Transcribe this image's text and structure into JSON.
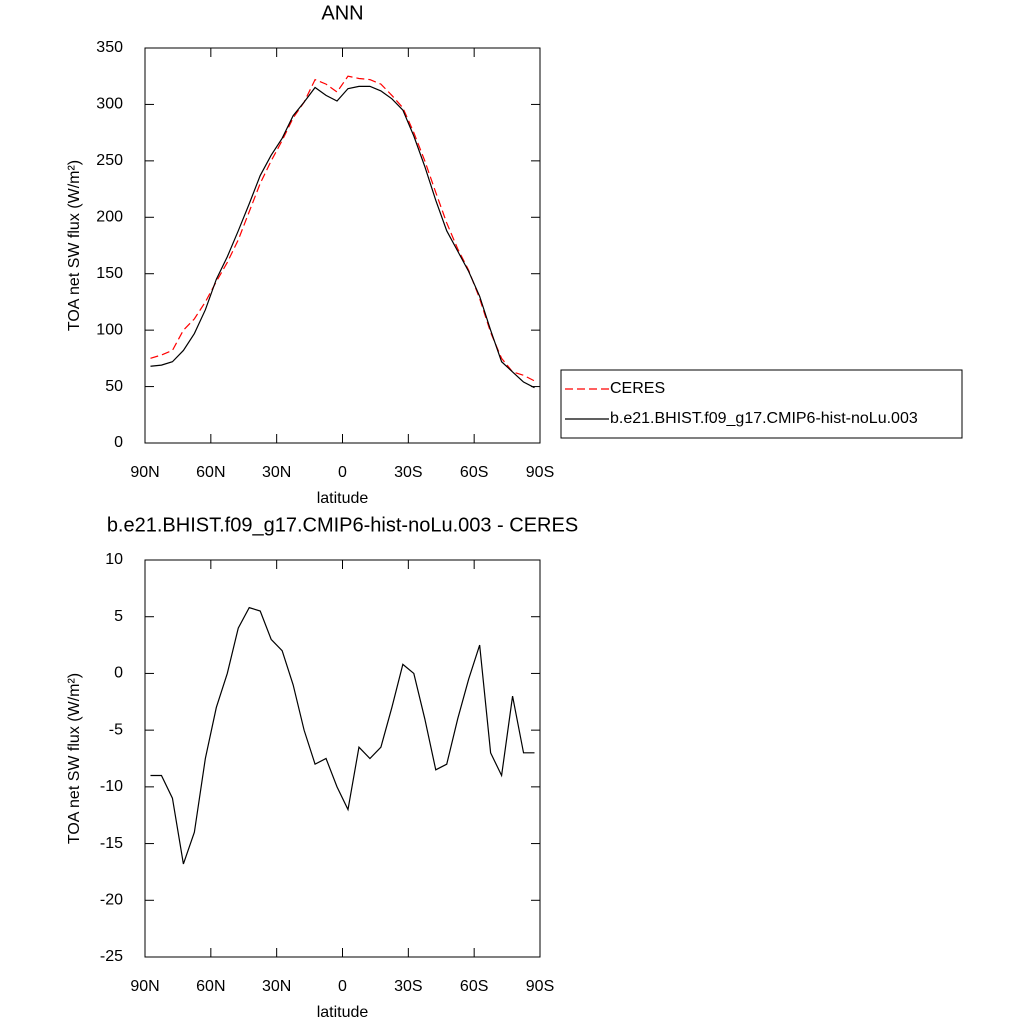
{
  "chart_data": [
    {
      "type": "line",
      "title": "ANN",
      "x_label": "latitude",
      "y_label": "TOA net SW flux (W/m²)",
      "x": [
        87.5,
        82.5,
        77.5,
        72.5,
        67.5,
        62.5,
        57.5,
        52.5,
        47.5,
        42.5,
        37.5,
        32.5,
        27.5,
        22.5,
        17.5,
        12.5,
        7.5,
        2.5,
        -2.5,
        -7.5,
        -12.5,
        -17.5,
        -22.5,
        -27.5,
        -32.5,
        -37.5,
        -42.5,
        -47.5,
        -52.5,
        -57.5,
        -62.5,
        -67.5,
        -72.5,
        -77.5,
        -82.5,
        -87.5
      ],
      "series": [
        {
          "name": "CERES",
          "color": "#ff0000",
          "dash": true,
          "values": [
            75,
            78,
            82,
            100,
            110,
            125,
            143,
            160,
            180,
            205,
            230,
            250,
            268,
            288,
            302,
            322,
            318,
            311,
            325,
            323,
            322,
            318,
            308,
            297,
            275,
            250,
            222,
            195,
            172,
            153,
            128,
            98,
            75,
            63,
            60,
            55
          ]
        },
        {
          "name": "b.e21.BHIST.f09_g17.CMIP6-hist-noLu.003",
          "color": "#000000",
          "dash": false,
          "values": [
            68,
            69,
            72,
            82,
            97,
            118,
            145,
            165,
            188,
            212,
            237,
            255,
            270,
            290,
            302,
            315,
            308,
            303,
            314,
            316,
            316,
            312,
            305,
            295,
            272,
            245,
            215,
            188,
            170,
            152,
            130,
            100,
            72,
            63,
            54,
            49
          ]
        }
      ],
      "xlim": [
        90,
        -90
      ],
      "xticks": [
        {
          "value": 90,
          "label": "90N"
        },
        {
          "value": 60,
          "label": "60N"
        },
        {
          "value": 30,
          "label": "30N"
        },
        0,
        {
          "value": -30,
          "label": "30S"
        },
        {
          "value": -60,
          "label": "60S"
        },
        {
          "value": -90,
          "label": "90S"
        }
      ],
      "ylim": [
        0,
        350
      ],
      "yticks": [
        0,
        50,
        100,
        150,
        200,
        250,
        300,
        350
      ],
      "legend": "right"
    },
    {
      "type": "line",
      "title": "b.e21.BHIST.f09_g17.CMIP6-hist-noLu.003 - CERES",
      "x_label": "latitude",
      "y_label": "TOA net SW flux (W/m²)",
      "x": [
        87.5,
        82.5,
        77.5,
        72.5,
        67.5,
        62.5,
        57.5,
        52.5,
        47.5,
        42.5,
        37.5,
        32.5,
        27.5,
        22.5,
        17.5,
        12.5,
        7.5,
        2.5,
        -2.5,
        -7.5,
        -12.5,
        -17.5,
        -22.5,
        -27.5,
        -32.5,
        -37.5,
        -42.5,
        -47.5,
        -52.5,
        -57.5,
        -62.5,
        -67.5,
        -72.5,
        -77.5,
        -82.5,
        -87.5
      ],
      "values": [
        -9,
        -9,
        -11,
        -16.8,
        -14,
        -7.5,
        -3,
        0,
        4,
        5.8,
        5.5,
        3,
        2,
        -1,
        -5,
        -8,
        -7.5,
        -10,
        -12,
        -6.5,
        -7.5,
        -6.5,
        -3,
        0.8,
        0,
        -4,
        -8.5,
        -8,
        -4,
        -0.5,
        2.5,
        -7,
        -9,
        -2,
        -7,
        -7
      ],
      "color": "#000000",
      "xlim": [
        90,
        -90
      ],
      "xticks": [
        {
          "value": 90,
          "label": "90N"
        },
        {
          "value": 60,
          "label": "60N"
        },
        {
          "value": 30,
          "label": "30N"
        },
        0,
        {
          "value": -30,
          "label": "30S"
        },
        {
          "value": -60,
          "label": "60S"
        },
        {
          "value": -90,
          "label": "90S"
        }
      ],
      "ylim": [
        -25,
        10
      ],
      "yticks": [
        -25,
        -20,
        -15,
        -10,
        -5,
        0,
        5,
        10
      ]
    }
  ]
}
